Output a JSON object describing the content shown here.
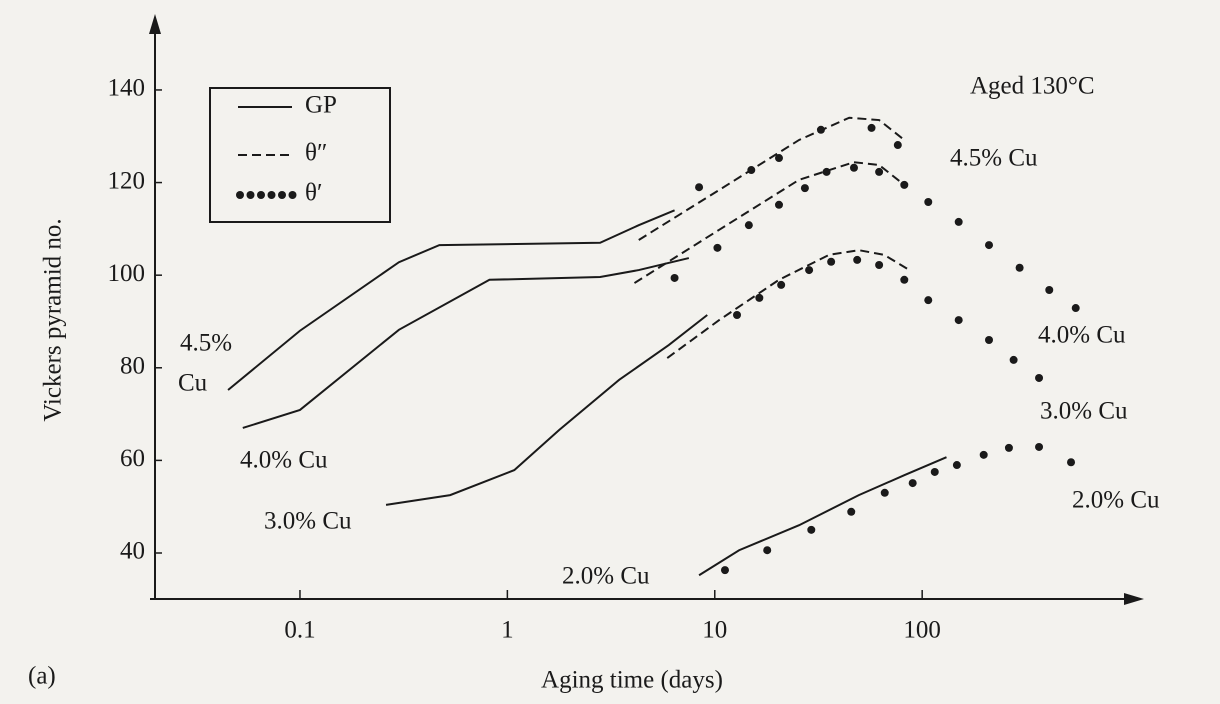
{
  "chart_data": {
    "type": "line",
    "xlabel": "Aging time (days)",
    "ylabel": "Vickers pyramid no.",
    "panel": "(a)",
    "condition": "Aged 130°C",
    "xlog": true,
    "xlim": [
      0.02,
      1200
    ],
    "xticks": [
      0.1,
      1,
      10,
      100
    ],
    "ylim": [
      30,
      155
    ],
    "yticks": [
      40,
      60,
      80,
      100,
      120,
      140
    ],
    "color": "#1a1a1a",
    "legend": [
      {
        "name": "GP",
        "style": "solid"
      },
      {
        "name": "θ″",
        "style": "dashed"
      },
      {
        "name": "θ′",
        "style": "dotted"
      }
    ],
    "labels": [
      "4.5%",
      "Cu",
      "4.0% Cu",
      "3.0% Cu",
      "2.0% Cu",
      "4.5% Cu",
      "4.0% Cu",
      "3.0% Cu",
      "2.0% Cu"
    ],
    "series": [
      {
        "style": "solid",
        "x": [
          0.045,
          0.1,
          0.3,
          0.47,
          2.8,
          4.3,
          6.4
        ],
        "values": [
          75.2,
          88,
          102.8,
          106.5,
          107,
          110.8,
          114
        ]
      },
      {
        "style": "dashed",
        "x": [
          4.3,
          10.5,
          25.5,
          44.5,
          62,
          82
        ],
        "values": [
          107.6,
          118.4,
          129.2,
          134,
          133.5,
          129.2
        ]
      },
      {
        "style": "dotted",
        "x": [
          8.4,
          15,
          20.4,
          32.5,
          57,
          76.3
        ],
        "values": [
          119,
          122.7,
          125.3,
          131.4,
          131.8,
          128.1
        ]
      },
      {
        "style": "solid",
        "x": [
          0.053,
          0.1,
          0.3,
          0.82,
          2.8,
          4.3,
          7.5
        ],
        "values": [
          67,
          70.9,
          88.2,
          99,
          99.6,
          101.1,
          103.7
        ]
      },
      {
        "style": "dashed",
        "x": [
          4.1,
          10.5,
          25.5,
          46.9,
          62,
          82
        ],
        "values": [
          98.3,
          109.8,
          120.6,
          124.4,
          123.8,
          119.5
        ]
      },
      {
        "style": "dotted",
        "x": [
          6.4,
          10.3,
          14.6,
          20.4,
          27.2,
          34.6,
          46.9,
          62,
          82,
          107,
          150,
          210,
          295,
          410,
          550
        ],
        "values": [
          99.4,
          105.9,
          110.8,
          115.2,
          118.8,
          122.3,
          123.2,
          122.3,
          119.5,
          115.8,
          111.5,
          106.5,
          101.6,
          96.8,
          92.9
        ]
      },
      {
        "style": "solid",
        "x": [
          0.26,
          0.53,
          1.08,
          1.78,
          3.46,
          6,
          9.2
        ],
        "values": [
          50.4,
          52.5,
          57.9,
          66.6,
          77.4,
          84.9,
          91.4
        ]
      },
      {
        "style": "dashed",
        "x": [
          5.9,
          10.5,
          20.4,
          35.6,
          49.5,
          65.5,
          86.8
        ],
        "values": [
          82.1,
          90.3,
          99,
          104.4,
          105.4,
          104.4,
          101.1
        ]
      },
      {
        "style": "dotted",
        "x": [
          12.8,
          16.4,
          20.9,
          28.5,
          36.4,
          48.6,
          62,
          82,
          107,
          150,
          210,
          276,
          366
        ],
        "values": [
          91.4,
          95.1,
          97.9,
          101.1,
          102.9,
          103.3,
          102.2,
          99,
          94.6,
          90.3,
          86,
          81.7,
          77.8
        ]
      },
      {
        "style": "solid",
        "x": [
          8.4,
          13.1,
          25.5,
          49.5,
          82,
          131
        ],
        "values": [
          35.2,
          40.6,
          46,
          52.5,
          56.8,
          60.7
        ]
      },
      {
        "style": "dotted",
        "x": [
          11.2,
          17.9,
          29.2,
          45.5,
          66,
          90,
          115,
          147,
          198,
          262,
          366,
          522
        ],
        "values": [
          36.3,
          40.6,
          45,
          48.9,
          53,
          55.1,
          57.5,
          59,
          61.2,
          62.7,
          62.9,
          59.6
        ]
      }
    ]
  }
}
